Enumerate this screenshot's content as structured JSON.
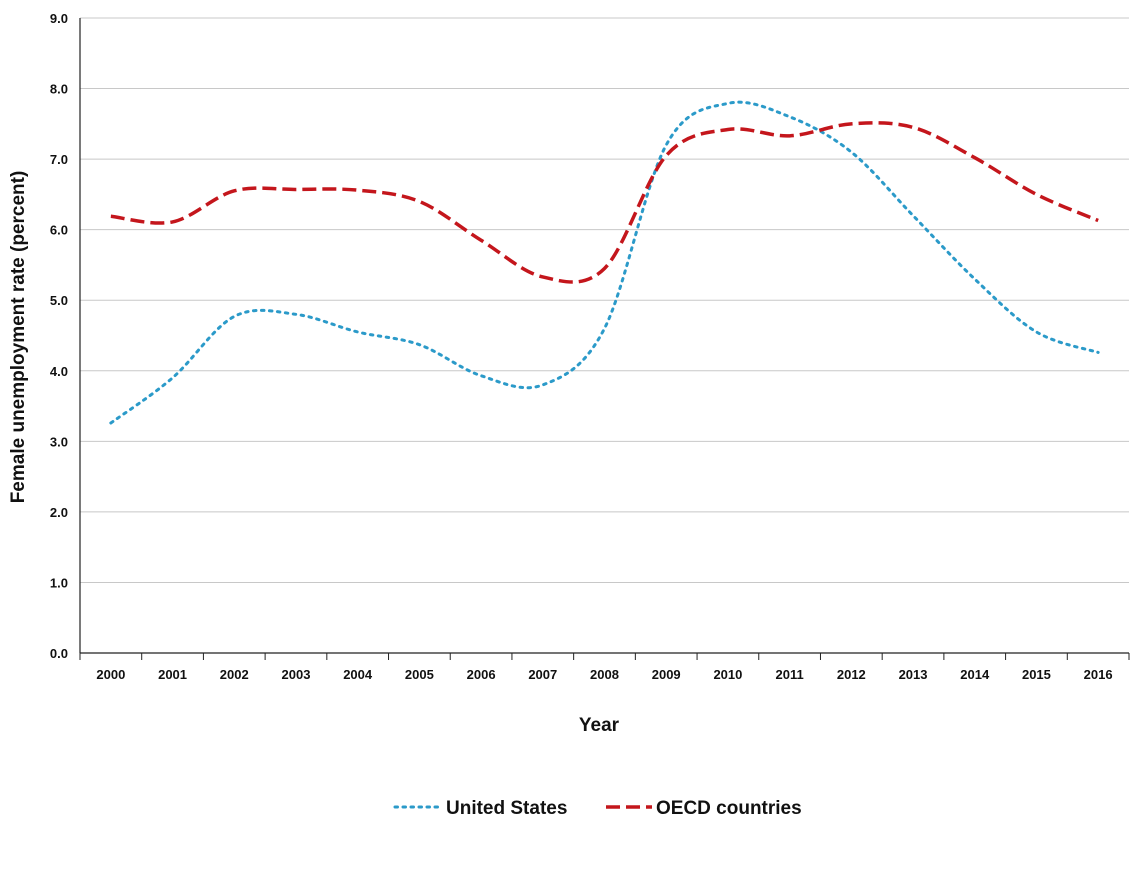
{
  "chart_data": {
    "type": "line",
    "title": "",
    "xlabel": "Year",
    "ylabel": "Female unemployment rate (percent)",
    "ylim": [
      0,
      9
    ],
    "yticks": [
      "0.0",
      "1.0",
      "2.0",
      "3.0",
      "4.0",
      "5.0",
      "6.0",
      "7.0",
      "8.0",
      "9.0"
    ],
    "categories": [
      "2000",
      "2001",
      "2002",
      "2003",
      "2004",
      "2005",
      "2006",
      "2007",
      "2008",
      "2009",
      "2010",
      "2011",
      "2012",
      "2013",
      "2014",
      "2015",
      "2016"
    ],
    "grid": true,
    "legend_position": "bottom-center",
    "series": [
      {
        "name": "United States",
        "style": "dotted",
        "color": "#2b9ac9",
        "values": [
          3.26,
          3.9,
          4.77,
          4.8,
          4.55,
          4.37,
          3.93,
          3.8,
          4.6,
          7.2,
          7.79,
          7.6,
          7.1,
          6.2,
          5.3,
          4.55,
          4.26
        ]
      },
      {
        "name": "OECD countries",
        "style": "dashed",
        "color": "#c4161c",
        "values": [
          6.19,
          6.11,
          6.55,
          6.57,
          6.56,
          6.4,
          5.85,
          5.33,
          5.45,
          7.05,
          7.42,
          7.33,
          7.5,
          7.45,
          7.02,
          6.5,
          6.13
        ]
      }
    ]
  }
}
